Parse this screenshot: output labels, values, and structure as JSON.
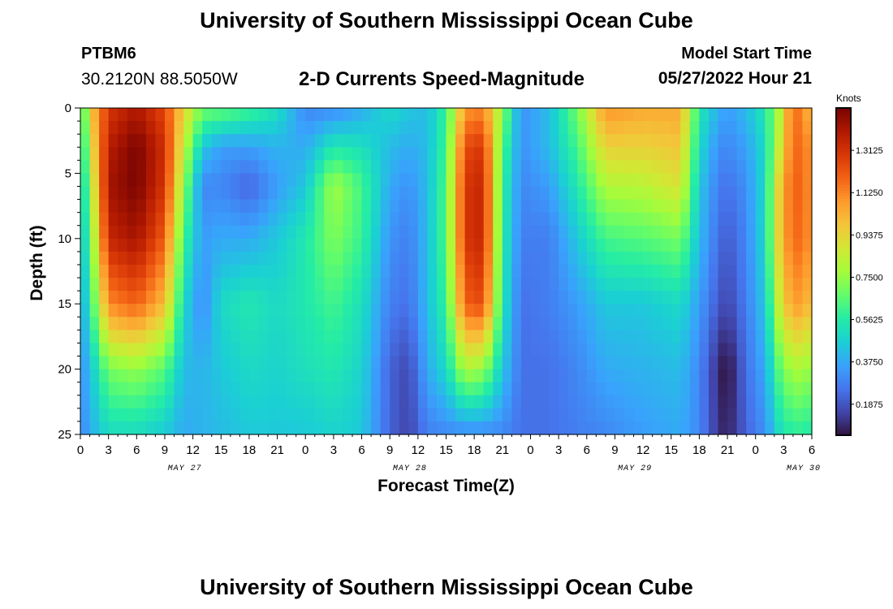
{
  "header": {
    "title": "University of Southern Mississippi Ocean Cube",
    "station_id": "PTBM6",
    "coordinates": "30.2120N  88.5050W",
    "subtitle": "2-D Currents Speed-Magnitude",
    "model_start_label": "Model Start Time",
    "model_start_value": "05/27/2022 Hour 21"
  },
  "footer": {
    "title": "University of Southern Mississippi Ocean Cube"
  },
  "chart_data": {
    "type": "heatmap",
    "title": "2-D Currents Speed-Magnitude",
    "xlabel": "Forecast Time(Z)",
    "ylabel": "Depth (ft)",
    "x_range_hours": [
      0,
      78
    ],
    "x_start": "05/27/2022 00Z",
    "x_tick_labels": [
      "0",
      "3",
      "6",
      "9",
      "12",
      "15",
      "18",
      "21",
      "0",
      "3",
      "6",
      "9",
      "12",
      "15",
      "18",
      "21",
      "0",
      "3",
      "6",
      "9",
      "12",
      "15",
      "18",
      "21",
      "0",
      "3",
      "6"
    ],
    "day_labels": [
      {
        "label": "MAY 27",
        "hour": 12
      },
      {
        "label": "MAY 28",
        "hour": 36
      },
      {
        "label": "MAY 29",
        "hour": 60
      },
      {
        "label": "MAY 30",
        "hour": 78
      }
    ],
    "ylim": [
      0,
      25
    ],
    "y_ticks": [
      0,
      5,
      10,
      15,
      20,
      25
    ],
    "colorbar": {
      "unit": "Knots",
      "min": 0.05,
      "max": 1.5,
      "tick_values": [
        0.1875,
        0.375,
        0.5625,
        0.75,
        0.9375,
        1.125,
        1.3125
      ],
      "tick_labels": [
        "0.1875",
        "0.3750",
        "0.5625",
        "0.7500",
        "0.9375",
        "1.1250",
        "1.3125"
      ],
      "colormap": [
        "#30123b",
        "#4145ab",
        "#4675ed",
        "#39a2fc",
        "#1bcfd4",
        "#24eca6",
        "#61fc6c",
        "#a4fc3b",
        "#d1e834",
        "#f3c63a",
        "#fe9b2d",
        "#f36315",
        "#d93806",
        "#b11901",
        "#7a0402"
      ]
    },
    "grid_time_step_hours": 1,
    "grid_depth_step_ft": 1,
    "speed_profiles_knots": {
      "depths_ft": [
        0,
        3,
        6,
        10,
        15,
        20,
        25
      ],
      "columns": [
        {
          "hour": 0,
          "speeds": [
            0.5,
            0.45,
            0.42,
            0.4,
            0.36,
            0.32,
            0.3
          ]
        },
        {
          "hour": 1,
          "speeds": [
            0.95,
            0.85,
            0.75,
            0.65,
            0.55,
            0.42,
            0.38
          ]
        },
        {
          "hour": 3,
          "speeds": [
            1.3,
            1.38,
            1.42,
            1.35,
            1.12,
            0.7,
            0.5
          ]
        },
        {
          "hour": 6,
          "speeds": [
            1.4,
            1.5,
            1.5,
            1.42,
            1.2,
            0.75,
            0.5
          ]
        },
        {
          "hour": 9,
          "speeds": [
            1.25,
            1.32,
            1.3,
            1.2,
            1.0,
            0.65,
            0.45
          ]
        },
        {
          "hour": 11,
          "speeds": [
            0.95,
            0.85,
            0.75,
            0.62,
            0.5,
            0.42,
            0.38
          ]
        },
        {
          "hour": 13,
          "speeds": [
            0.7,
            0.45,
            0.3,
            0.35,
            0.3,
            0.4,
            0.4
          ]
        },
        {
          "hour": 15,
          "speeds": [
            0.68,
            0.35,
            0.3,
            0.38,
            0.5,
            0.45,
            0.42
          ]
        },
        {
          "hour": 18,
          "speeds": [
            0.62,
            0.35,
            0.22,
            0.38,
            0.55,
            0.5,
            0.45
          ]
        },
        {
          "hour": 21,
          "speeds": [
            0.52,
            0.4,
            0.35,
            0.45,
            0.5,
            0.48,
            0.45
          ]
        },
        {
          "hour": 24,
          "speeds": [
            0.3,
            0.38,
            0.45,
            0.55,
            0.55,
            0.52,
            0.45
          ]
        },
        {
          "hour": 27,
          "speeds": [
            0.3,
            0.55,
            0.78,
            0.72,
            0.62,
            0.55,
            0.48
          ]
        },
        {
          "hour": 30,
          "speeds": [
            0.38,
            0.52,
            0.62,
            0.6,
            0.52,
            0.48,
            0.45
          ]
        },
        {
          "hour": 33,
          "speeds": [
            0.5,
            0.42,
            0.38,
            0.33,
            0.28,
            0.22,
            0.22
          ]
        },
        {
          "hour": 35,
          "speeds": [
            0.45,
            0.38,
            0.32,
            0.28,
            0.25,
            0.16,
            0.15
          ]
        },
        {
          "hour": 37,
          "speeds": [
            0.42,
            0.42,
            0.42,
            0.42,
            0.42,
            0.38,
            0.28
          ]
        },
        {
          "hour": 39,
          "speeds": [
            0.6,
            0.62,
            0.65,
            0.65,
            0.6,
            0.5,
            0.3
          ]
        },
        {
          "hour": 41,
          "speeds": [
            1.08,
            1.25,
            1.3,
            1.3,
            1.2,
            0.8,
            0.3
          ]
        },
        {
          "hour": 43,
          "speeds": [
            1.12,
            1.3,
            1.35,
            1.35,
            1.25,
            0.75,
            0.3
          ]
        },
        {
          "hour": 45,
          "speeds": [
            0.75,
            0.65,
            0.6,
            0.58,
            0.55,
            0.45,
            0.3
          ]
        },
        {
          "hour": 47,
          "speeds": [
            0.32,
            0.32,
            0.3,
            0.28,
            0.25,
            0.25,
            0.25
          ]
        },
        {
          "hour": 50,
          "speeds": [
            0.42,
            0.42,
            0.35,
            0.28,
            0.28,
            0.25,
            0.25
          ]
        },
        {
          "hour": 53,
          "speeds": [
            0.7,
            0.62,
            0.55,
            0.45,
            0.35,
            0.3,
            0.28
          ]
        },
        {
          "hour": 56,
          "speeds": [
            1.1,
            0.95,
            0.8,
            0.62,
            0.45,
            0.38,
            0.3
          ]
        },
        {
          "hour": 60,
          "speeds": [
            1.05,
            0.95,
            0.82,
            0.65,
            0.45,
            0.4,
            0.35
          ]
        },
        {
          "hour": 64,
          "speeds": [
            1.05,
            0.98,
            0.9,
            0.7,
            0.5,
            0.42,
            0.38
          ]
        },
        {
          "hour": 66,
          "speeds": [
            0.55,
            0.5,
            0.45,
            0.42,
            0.35,
            0.3,
            0.3
          ]
        },
        {
          "hour": 68,
          "speeds": [
            0.4,
            0.32,
            0.28,
            0.25,
            0.2,
            0.1,
            0.12
          ]
        },
        {
          "hour": 69,
          "speeds": [
            0.35,
            0.3,
            0.25,
            0.2,
            0.15,
            0.04,
            0.08
          ]
        },
        {
          "hour": 71,
          "speeds": [
            0.42,
            0.36,
            0.32,
            0.3,
            0.28,
            0.25,
            0.22
          ]
        },
        {
          "hour": 73,
          "speeds": [
            0.55,
            0.5,
            0.5,
            0.5,
            0.45,
            0.38,
            0.32
          ]
        },
        {
          "hour": 74.5,
          "speeds": [
            0.8,
            0.85,
            0.95,
            0.95,
            0.85,
            0.65,
            0.5
          ]
        },
        {
          "hour": 76,
          "speeds": [
            1.2,
            1.2,
            1.22,
            1.2,
            1.1,
            0.8,
            0.58
          ]
        },
        {
          "hour": 78,
          "speeds": [
            1.0,
            1.1,
            1.1,
            1.1,
            1.0,
            0.75,
            0.55
          ]
        }
      ]
    }
  }
}
